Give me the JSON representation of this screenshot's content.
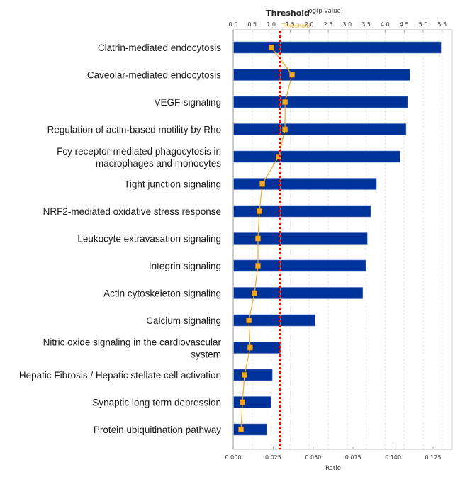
{
  "chart_data": {
    "type": "bar",
    "orientation": "horizontal",
    "categories": [
      [
        "Clatrin-mediated endocytosis"
      ],
      [
        "Caveolar-mediated endocytosis"
      ],
      [
        "VEGF-signaling"
      ],
      [
        "Regulation of actin-based motility by Rho"
      ],
      [
        "Fcy receptor-mediated phagocytosis in",
        "macrophages and monocytes"
      ],
      [
        "Tight junction signaling"
      ],
      [
        "NRF2-mediated oxidative stress response"
      ],
      [
        "Leukocyte extravasation signaling"
      ],
      [
        "Integrin signaling"
      ],
      [
        "Actin cytoskeleton signaling"
      ],
      [
        "Calcium signaling"
      ],
      [
        "Nitric oxide signaling in the cardiovascular",
        "system"
      ],
      [
        "Hepatic Fibrosis / Hepatic stellate cell activation"
      ],
      [
        "Synaptic long term depression"
      ],
      [
        "Protein ubiquitination pathway"
      ]
    ],
    "series": [
      {
        "name": "-log(p-value)",
        "kind": "bar",
        "axis": "top",
        "color": "#003399",
        "values": [
          5.47,
          4.65,
          4.59,
          4.55,
          4.39,
          3.77,
          3.62,
          3.53,
          3.49,
          3.41,
          2.15,
          1.25,
          1.03,
          0.99,
          0.88
        ]
      },
      {
        "name": "Ratio",
        "kind": "line",
        "axis": "bottom",
        "color": "#f5a623",
        "marker": "square",
        "values": [
          0.024,
          0.0368,
          0.0324,
          0.0324,
          0.0284,
          0.0182,
          0.0164,
          0.0155,
          0.0155,
          0.0133,
          0.0098,
          0.0106,
          0.0071,
          0.0058,
          0.0049
        ]
      }
    ],
    "top_axis": {
      "label": "-log(p-value)",
      "range": [
        0,
        5.8
      ],
      "ticks": [
        0.0,
        0.5,
        1.0,
        1.5,
        2.0,
        2.5,
        3.0,
        3.5,
        4.0,
        4.5,
        5.0,
        5.5
      ],
      "tick_labels": [
        "0.0",
        "0.5",
        "1.0",
        "1.5",
        "2.0",
        "2.5",
        "3.0",
        "3.5",
        "4.0",
        "4.5",
        "5.0",
        "5.5"
      ]
    },
    "bottom_axis": {
      "label": "Ratio",
      "range": [
        0,
        0.1375
      ],
      "ticks": [
        0.0,
        0.025,
        0.05,
        0.075,
        0.1,
        0.125
      ],
      "tick_labels": [
        "0.000",
        "0.025",
        "0.050",
        "0.075",
        "0.100",
        "0.125"
      ]
    },
    "threshold": {
      "title": "Threshold",
      "marker_label": "Threshold",
      "value": 1.23,
      "color": "#ff0000",
      "style": "dotted"
    },
    "grid": "vertical dotted",
    "title": "",
    "xlabel": "Ratio",
    "ylabel": ""
  }
}
